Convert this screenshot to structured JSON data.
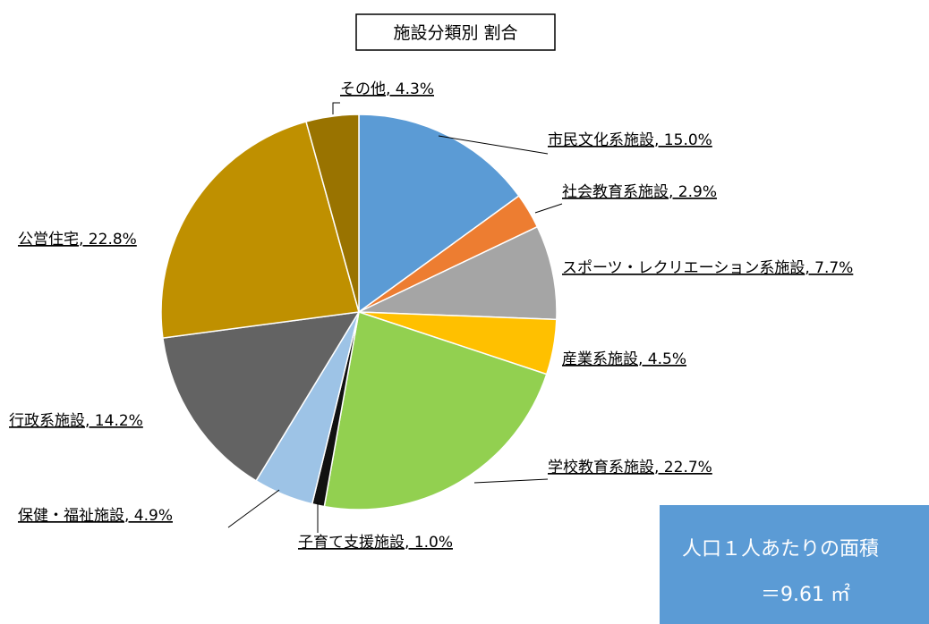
{
  "chart_data": {
    "type": "pie",
    "title": "施設分類別 割合",
    "categories": [
      "市民文化系施設",
      "社会教育系施設",
      "スポーツ・レクリエーション系施設",
      "産業系施設",
      "学校教育系施設",
      "子育て支援施設",
      "保健・福祉施設",
      "行政系施設",
      "公営住宅",
      "その他"
    ],
    "values": [
      15.0,
      2.9,
      7.7,
      4.5,
      22.7,
      1.0,
      4.9,
      14.2,
      22.8,
      4.3
    ],
    "value_labels": [
      ", 15.0%",
      ", 2.9%",
      ", 7.7%",
      ", 4.5%",
      ", 22.7%",
      ", 1.0%",
      ", 4.9%",
      ", 14.2%",
      ", 22.8%",
      ", 4.3%"
    ],
    "colors": [
      "#5b9bd5",
      "#ed7d31",
      "#a5a5a5",
      "#ffc000",
      "#92d050",
      "#111111",
      "#9dc3e6",
      "#636363",
      "#bf9000",
      "#997300"
    ]
  },
  "note": {
    "lines": [
      "人口１人あたりの面積",
      "＝9.61 ㎡"
    ]
  }
}
